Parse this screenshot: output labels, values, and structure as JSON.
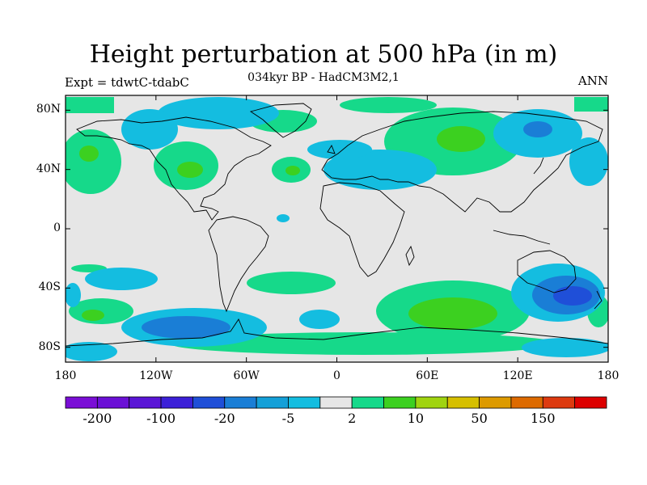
{
  "figure": {
    "title": "Height perturbation at 500 hPa (in m)",
    "subtitle": "034kyr BP - HadCM3M2,1",
    "experiment_label": "Expt = tdwtC-tdabC",
    "season_label": "ANN"
  },
  "axes": {
    "lat_ticks": [
      "80N",
      "40N",
      "0",
      "40S",
      "80S"
    ],
    "lat_values": [
      80,
      40,
      0,
      -40,
      -80
    ],
    "lon_ticks": [
      "180",
      "120W",
      "60W",
      "0",
      "60E",
      "120E",
      "180"
    ],
    "lon_values": [
      -180,
      -120,
      -60,
      0,
      60,
      120,
      180
    ]
  },
  "colorbar": {
    "colors": [
      "#7a0ed6",
      "#6b10d6",
      "#5a16d6",
      "#3c20d8",
      "#1f4fd8",
      "#1a7ed6",
      "#14a0d8",
      "#14bde0",
      "#e6e6e6",
      "#16d98a",
      "#3cd020",
      "#a0d410",
      "#d6bf00",
      "#dd9a00",
      "#dd6a00",
      "#dd3a10",
      "#dd0000"
    ],
    "tick_labels": [
      "-200",
      "-100",
      "-20",
      "-5",
      "2",
      "10",
      "50",
      "150"
    ],
    "levels": [
      -200,
      -100,
      -20,
      -5,
      2,
      10,
      50,
      150
    ]
  },
  "chart_data": {
    "type": "heatmap",
    "title": "Height perturbation at 500 hPa (in m)",
    "subtitle": "034kyr BP - HadCM3M2,1",
    "projection": "cylindrical-equidistant",
    "xlim": [
      -180,
      180
    ],
    "ylim": [
      -90,
      90
    ],
    "contour_levels": [
      -200,
      -150,
      -100,
      -50,
      -20,
      -10,
      -5,
      -2,
      2,
      5,
      10,
      20,
      50,
      100,
      150,
      200
    ],
    "features": [
      {
        "lon": -143,
        "lat": 44,
        "kind": "positive",
        "level": 10
      },
      {
        "lon": -85,
        "lat": 42,
        "kind": "positive",
        "level": 10
      },
      {
        "lon": -48,
        "lat": 70,
        "kind": "positive",
        "level": 10
      },
      {
        "lon": -28,
        "lat": 38,
        "kind": "positive",
        "level": 10
      },
      {
        "lon": 75,
        "lat": 55,
        "kind": "positive",
        "level": 10
      },
      {
        "lon": -100,
        "lat": 80,
        "kind": "negative",
        "level": -5
      },
      {
        "lon": 15,
        "lat": 40,
        "kind": "negative",
        "level": -5
      },
      {
        "lon": 110,
        "lat": 72,
        "kind": "negative",
        "level": -5
      },
      {
        "lon": 175,
        "lat": 42,
        "kind": "negative",
        "level": -5
      },
      {
        "lon": 130,
        "lat": -42,
        "kind": "negative",
        "level": -20
      },
      {
        "lon": -100,
        "lat": -65,
        "kind": "negative",
        "level": -20
      },
      {
        "lon": -155,
        "lat": -43,
        "kind": "negative",
        "level": -5
      },
      {
        "lon": 70,
        "lat": -57,
        "kind": "positive",
        "level": 10
      },
      {
        "lon": -30,
        "lat": -40,
        "kind": "positive",
        "level": 2
      },
      {
        "lon": -150,
        "lat": -60,
        "kind": "positive",
        "level": 2
      },
      {
        "lon": 90,
        "lat": -75,
        "kind": "positive",
        "level": 2
      }
    ]
  }
}
